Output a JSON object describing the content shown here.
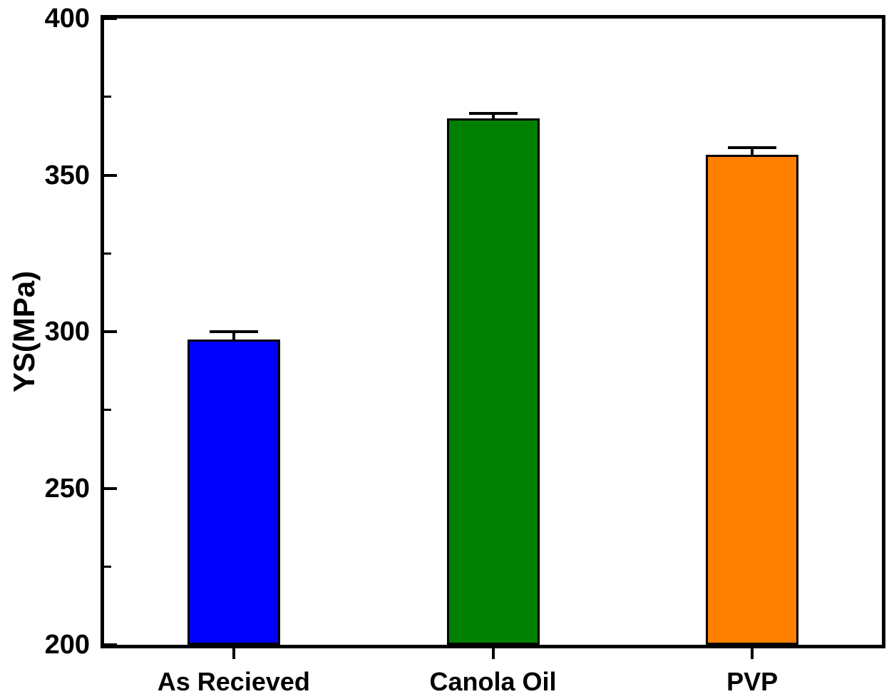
{
  "figure": {
    "background_color": "#ffffff",
    "frame_color": "#000000",
    "text_color": "#000000"
  },
  "chart_data": {
    "type": "bar",
    "title": "",
    "ylabel": "YS(MPa)",
    "categories": [
      "As Recieved",
      "Canola Oil",
      "PVP"
    ],
    "values": [
      297.5,
      368,
      356.5
    ],
    "errors": [
      2.5,
      1.7,
      2.3
    ],
    "error_bar_style": "upper-cap",
    "bar_colors": [
      "#0000ff",
      "#008000",
      "#ff8000"
    ],
    "bar_edge_color": "#000000",
    "ylim": [
      200,
      400
    ],
    "y_major_ticks": [
      200,
      250,
      300,
      350,
      400
    ],
    "y_minor_ticks": [
      225,
      275,
      325,
      375
    ],
    "y_tick_direction": "in",
    "x_tick_direction": "out",
    "grid": false,
    "legend": null
  }
}
